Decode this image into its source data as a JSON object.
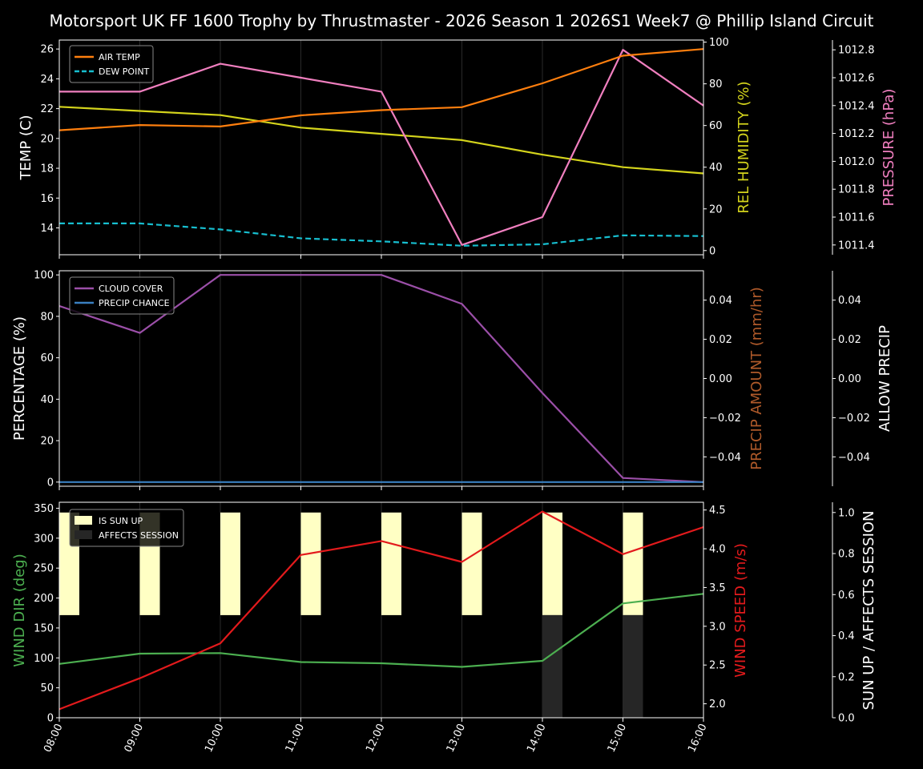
{
  "title": "Motorsport UK FF 1600 Trophy by Thrustmaster - 2026 Season 1 2026S1 Week7 @ Phillip Island Circuit",
  "colors": {
    "background": "#000000",
    "air_temp": "#ff7f0e",
    "dew_point": "#17becf",
    "rel_humidity": "#d4d41c",
    "pressure": "#f07fbf",
    "cloud_cover": "#9b4fa8",
    "precip_chance": "#3a7fc0",
    "precip_amount_label": "#b05a2a",
    "wind_dir": "#4caf50",
    "wind_speed": "#e31a1c",
    "sun_up": "#ffffc4",
    "affects_session": "#262626"
  },
  "chart_data": [
    {
      "type": "line",
      "title": "",
      "x": [
        "08:00",
        "09:00",
        "10:00",
        "11:00",
        "12:00",
        "13:00",
        "14:00",
        "15:00",
        "16:00"
      ],
      "ylabel": "TEMP (C)",
      "ylim": [
        12.2,
        26.6
      ],
      "yticks": [
        "14",
        "16",
        "18",
        "20",
        "22",
        "24",
        "26"
      ],
      "y2label": "REL HUMIDITY (%)",
      "y2lim": [
        -2,
        101
      ],
      "y2ticks": [
        "0",
        "20",
        "40",
        "60",
        "80",
        "100"
      ],
      "y3label": "PRESSURE (hPa)",
      "y3lim": [
        1011.33,
        1012.87
      ],
      "y3ticks": [
        "1011.4",
        "1011.6",
        "1011.8",
        "1012.0",
        "1012.2",
        "1012.4",
        "1012.6",
        "1012.8"
      ],
      "legend": [
        "AIR TEMP",
        "DEW POINT"
      ],
      "legend_position": "upper left",
      "series": [
        {
          "name": "AIR TEMP",
          "axis": "left",
          "values": [
            20.55,
            20.9,
            20.8,
            21.55,
            21.9,
            22.1,
            23.7,
            25.55,
            26.0
          ]
        },
        {
          "name": "DEW POINT",
          "axis": "left",
          "style": "dashed",
          "values": [
            14.3,
            14.3,
            13.9,
            13.3,
            13.1,
            12.8,
            12.9,
            13.5,
            13.45
          ]
        },
        {
          "name": "REL HUMIDITY",
          "axis": "right1",
          "values": [
            69,
            67,
            65,
            59,
            56,
            53,
            46,
            40,
            37
          ]
        },
        {
          "name": "PRESSURE",
          "axis": "right2",
          "values": [
            1012.5,
            1012.5,
            1012.7,
            1012.6,
            1012.5,
            1011.4,
            1011.6,
            1012.8,
            1012.4
          ]
        }
      ]
    },
    {
      "type": "line",
      "title": "",
      "x": [
        "08:00",
        "09:00",
        "10:00",
        "11:00",
        "12:00",
        "13:00",
        "14:00",
        "15:00",
        "16:00"
      ],
      "ylabel": "PERCENTAGE (%)",
      "ylim": [
        -2,
        102
      ],
      "yticks": [
        "0",
        "20",
        "40",
        "60",
        "80",
        "100"
      ],
      "y2label": "PRECIP AMOUNT (mm/hr)",
      "y2lim": [
        -0.055,
        0.055
      ],
      "y2ticks": [
        "−0.04",
        "−0.02",
        "0.00",
        "0.02",
        "0.04"
      ],
      "y3label": "ALLOW PRECIP",
      "y3lim": [
        -0.055,
        0.055
      ],
      "y3ticks": [
        "−0.04",
        "−0.02",
        "0.00",
        "0.02",
        "0.04"
      ],
      "legend": [
        "CLOUD COVER",
        "PRECIP CHANCE"
      ],
      "legend_position": "upper left",
      "series": [
        {
          "name": "CLOUD COVER",
          "axis": "left",
          "values": [
            85,
            72,
            100,
            100,
            100,
            86,
            43,
            2,
            0
          ]
        },
        {
          "name": "PRECIP CHANCE",
          "axis": "left",
          "values": [
            0,
            0,
            0,
            0,
            0,
            0,
            0,
            0,
            0
          ]
        }
      ]
    },
    {
      "type": "line",
      "title": "",
      "x": [
        "08:00",
        "09:00",
        "10:00",
        "11:00",
        "12:00",
        "13:00",
        "14:00",
        "15:00",
        "16:00"
      ],
      "xlabel": "",
      "ylabel": "WIND DIR (deg)",
      "ylim": [
        0,
        360
      ],
      "yticks": [
        "0",
        "50",
        "100",
        "150",
        "200",
        "250",
        "300",
        "350"
      ],
      "y2label": "WIND SPEED (m/s)",
      "y2lim": [
        1.82,
        4.6
      ],
      "y2ticks": [
        "2.0",
        "2.5",
        "3.0",
        "3.5",
        "4.0",
        "4.5"
      ],
      "y3label": "SUN UP / AFFECTS SESSION",
      "y3lim": [
        0,
        1.05
      ],
      "y3ticks": [
        "0.0",
        "0.2",
        "0.4",
        "0.6",
        "0.8",
        "1.0"
      ],
      "legend": [
        "IS SUN UP",
        "AFFECTS SESSION"
      ],
      "legend_position": "upper left",
      "series": [
        {
          "name": "WIND DIR",
          "axis": "left",
          "values": [
            90,
            107,
            108,
            93,
            91,
            85,
            95,
            191,
            207
          ]
        },
        {
          "name": "WIND SPEED",
          "axis": "right1",
          "values": [
            1.93,
            2.33,
            2.78,
            3.92,
            4.1,
            3.83,
            4.48,
            3.93,
            4.28
          ]
        },
        {
          "name": "IS SUN UP",
          "axis": "right2",
          "type": "bar",
          "values": [
            1,
            1,
            1,
            1,
            1,
            1,
            1,
            1,
            0
          ]
        },
        {
          "name": "AFFECTS SESSION",
          "axis": "right2",
          "type": "bar",
          "values": [
            0,
            0,
            0,
            0,
            0,
            0,
            1,
            1,
            0
          ]
        }
      ]
    }
  ]
}
